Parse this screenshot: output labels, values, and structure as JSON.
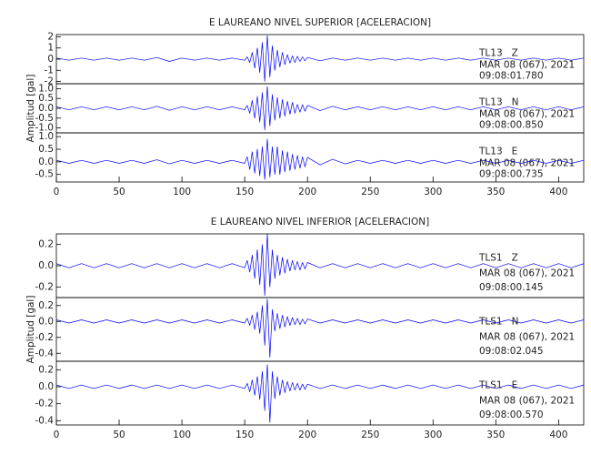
{
  "chart_data": [
    {
      "type": "line",
      "title": "E LAUREANO NIVEL SUPERIOR [ACELERACION]",
      "ylabel": "Amplitud [gal]",
      "color": "#0000ff",
      "xlim": [
        0,
        420
      ],
      "xticks": [
        0,
        50,
        100,
        150,
        200,
        250,
        300,
        350,
        400
      ],
      "x": [
        0,
        10,
        20,
        30,
        40,
        50,
        60,
        70,
        80,
        90,
        100,
        110,
        120,
        130,
        140,
        150,
        152,
        154,
        156,
        158,
        160,
        162,
        164,
        166,
        168,
        170,
        172,
        174,
        176,
        178,
        180,
        182,
        184,
        186,
        188,
        190,
        192,
        194,
        196,
        198,
        200,
        210,
        220,
        230,
        240,
        250,
        260,
        270,
        280,
        290,
        300,
        310,
        320,
        330,
        340,
        350,
        360,
        370,
        380,
        390,
        400,
        410,
        420
      ],
      "series": [
        {
          "station": "TL13   Z",
          "date": "MAR 08 (067), 2021",
          "time": "09:08:01.780",
          "ylim": [
            -2.2,
            2.2
          ],
          "yticks": [
            -2,
            -1,
            {
              "value": 0,
              "label": "0"
            },
            1,
            2
          ],
          "values": [
            0.1,
            -0.1,
            0.1,
            -0.1,
            0.1,
            -0.1,
            0.1,
            -0.1,
            0.15,
            -0.2,
            0.1,
            -0.1,
            0.1,
            -0.1,
            0.1,
            -0.1,
            0.2,
            -0.3,
            0.6,
            -0.8,
            1.0,
            -1.2,
            1.5,
            -2.0,
            2.1,
            -1.6,
            1.2,
            -1.0,
            0.8,
            -0.7,
            0.6,
            -0.5,
            0.4,
            -0.35,
            0.3,
            -0.3,
            0.25,
            -0.2,
            0.2,
            -0.15,
            0.15,
            -0.15,
            0.1,
            -0.1,
            0.1,
            -0.1,
            0.1,
            -0.1,
            0.1,
            -0.1,
            0.1,
            -0.1,
            0.1,
            -0.1,
            0.1,
            -0.1,
            0.1,
            -0.1,
            0.1,
            -0.1,
            0.1,
            -0.1,
            0.1
          ]
        },
        {
          "station": "TL13   N",
          "date": "MAR 08 (067), 2021",
          "time": "09:08:00.850",
          "ylim": [
            -1.25,
            1.25
          ],
          "yticks": [
            {
              "value": -1,
              "label": "-1.0"
            },
            -0.5,
            {
              "value": 0,
              "label": "0.0"
            },
            0.5,
            {
              "value": 1,
              "label": "1.0"
            }
          ],
          "values": [
            0.08,
            -0.08,
            0.08,
            -0.08,
            0.08,
            -0.08,
            0.08,
            -0.08,
            0.1,
            -0.1,
            0.08,
            -0.08,
            0.08,
            -0.08,
            0.08,
            -0.08,
            0.15,
            -0.25,
            0.4,
            -0.5,
            0.6,
            -0.7,
            0.8,
            -1.1,
            1.1,
            -0.9,
            0.7,
            -0.6,
            0.55,
            -0.5,
            0.45,
            -0.4,
            0.35,
            -0.3,
            0.3,
            -0.25,
            0.2,
            -0.2,
            0.18,
            -0.15,
            0.15,
            -0.12,
            0.1,
            -0.08,
            0.08,
            -0.08,
            0.08,
            -0.08,
            0.08,
            -0.08,
            0.08,
            -0.08,
            0.08,
            -0.08,
            0.08,
            -0.08,
            0.08,
            -0.08,
            0.08,
            -0.08,
            0.08,
            -0.08,
            0.08
          ]
        },
        {
          "station": "TL13   E",
          "date": "MAR 08 (067), 2021",
          "time": "09:08:00.735",
          "ylim": [
            -0.8,
            1.15
          ],
          "yticks": [
            -0.5,
            {
              "value": 0,
              "label": "0.0"
            },
            0.5,
            {
              "value": 1,
              "label": "1.0"
            }
          ],
          "values": [
            0.06,
            -0.06,
            0.06,
            -0.06,
            0.06,
            -0.06,
            0.06,
            -0.06,
            0.08,
            -0.08,
            0.06,
            -0.06,
            0.06,
            -0.06,
            0.06,
            -0.06,
            0.2,
            -0.3,
            0.4,
            -0.45,
            0.5,
            -0.55,
            0.6,
            -0.7,
            0.9,
            -0.6,
            0.6,
            -0.5,
            0.6,
            -0.5,
            0.45,
            -0.4,
            0.4,
            -0.35,
            0.3,
            -0.3,
            0.25,
            -0.25,
            0.2,
            -0.2,
            0.18,
            -0.12,
            0.1,
            -0.08,
            0.06,
            -0.06,
            0.06,
            -0.06,
            0.06,
            -0.06,
            0.06,
            -0.06,
            0.06,
            -0.06,
            0.06,
            -0.06,
            0.06,
            -0.06,
            0.06,
            -0.06,
            0.06,
            -0.06,
            0.06
          ]
        }
      ]
    },
    {
      "type": "line",
      "title": "E LAUREANO NIVEL INFERIOR [ACELERACION]",
      "ylabel": "Amplitud [gal]",
      "color": "#0000ff",
      "xlim": [
        0,
        420
      ],
      "xticks": [
        0,
        50,
        100,
        150,
        200,
        250,
        300,
        350,
        400
      ],
      "x": [
        0,
        10,
        20,
        30,
        40,
        50,
        60,
        70,
        80,
        90,
        100,
        110,
        120,
        130,
        140,
        150,
        152,
        154,
        156,
        158,
        160,
        162,
        164,
        166,
        168,
        170,
        172,
        174,
        176,
        178,
        180,
        182,
        184,
        186,
        188,
        190,
        192,
        194,
        196,
        198,
        200,
        210,
        220,
        230,
        240,
        250,
        260,
        270,
        280,
        290,
        300,
        310,
        320,
        330,
        340,
        350,
        360,
        370,
        380,
        390,
        400,
        410,
        420
      ],
      "series": [
        {
          "station": "TLS1   Z",
          "date": "MAR 08 (067), 2021",
          "time": "09:08:00.145",
          "ylim": [
            -0.3,
            0.3
          ],
          "yticks": [
            -0.2,
            {
              "value": 0,
              "label": "0.0"
            },
            0.2
          ],
          "values": [
            0.02,
            -0.02,
            0.02,
            -0.02,
            0.02,
            -0.02,
            0.02,
            -0.02,
            0.02,
            -0.02,
            0.02,
            -0.02,
            0.02,
            -0.02,
            0.02,
            -0.02,
            0.05,
            -0.06,
            0.1,
            -0.12,
            0.15,
            -0.18,
            0.2,
            -0.28,
            0.3,
            -0.2,
            0.15,
            -0.12,
            0.1,
            -0.09,
            0.08,
            -0.07,
            0.06,
            -0.05,
            0.05,
            -0.04,
            0.04,
            -0.04,
            0.03,
            -0.03,
            0.03,
            -0.02,
            0.02,
            -0.02,
            0.02,
            -0.02,
            0.02,
            -0.02,
            0.02,
            -0.02,
            0.02,
            -0.02,
            0.02,
            -0.02,
            0.02,
            -0.02,
            0.02,
            -0.02,
            0.02,
            -0.02,
            0.02,
            -0.02,
            0.02
          ]
        },
        {
          "station": "TLS1   N",
          "date": "MAR 08 (067), 2021",
          "time": "09:08:02.045",
          "ylim": [
            -0.5,
            0.3
          ],
          "yticks": [
            -0.4,
            -0.2,
            {
              "value": 0,
              "label": "0.0"
            },
            0.2
          ],
          "values": [
            0.02,
            -0.02,
            0.02,
            -0.02,
            0.02,
            -0.02,
            0.02,
            -0.02,
            0.02,
            -0.02,
            0.02,
            -0.02,
            0.02,
            -0.02,
            0.02,
            -0.02,
            0.04,
            -0.05,
            0.08,
            -0.1,
            0.12,
            -0.15,
            0.2,
            -0.3,
            0.28,
            -0.45,
            0.15,
            -0.12,
            0.1,
            -0.09,
            0.08,
            -0.07,
            0.06,
            -0.05,
            0.05,
            -0.04,
            0.04,
            -0.04,
            0.03,
            -0.03,
            0.03,
            -0.02,
            0.02,
            -0.02,
            0.02,
            -0.02,
            0.02,
            -0.02,
            0.02,
            -0.02,
            0.02,
            -0.02,
            0.02,
            -0.02,
            0.02,
            -0.02,
            0.02,
            -0.02,
            0.02,
            -0.02,
            0.02,
            -0.02,
            0.02
          ]
        },
        {
          "station": "TLS1   E",
          "date": "MAR 08 (067), 2021",
          "time": "09:08:00.570",
          "ylim": [
            -0.45,
            0.3
          ],
          "yticks": [
            -0.4,
            -0.2,
            {
              "value": 0,
              "label": "0.0"
            },
            0.2
          ],
          "values": [
            0.02,
            -0.02,
            0.02,
            -0.02,
            0.02,
            -0.02,
            0.02,
            -0.02,
            0.02,
            -0.02,
            0.02,
            -0.02,
            0.02,
            -0.02,
            0.02,
            -0.02,
            0.04,
            -0.06,
            0.08,
            -0.1,
            0.12,
            -0.15,
            0.18,
            -0.28,
            0.26,
            -0.42,
            0.18,
            -0.14,
            0.12,
            -0.1,
            0.08,
            -0.07,
            0.06,
            -0.05,
            0.05,
            -0.04,
            0.04,
            -0.04,
            0.03,
            -0.03,
            0.03,
            -0.02,
            0.02,
            -0.02,
            0.02,
            -0.02,
            0.02,
            -0.02,
            0.02,
            -0.02,
            0.02,
            -0.02,
            0.02,
            -0.02,
            0.02,
            -0.02,
            0.02,
            -0.02,
            0.02,
            -0.02,
            0.02,
            -0.02,
            0.02
          ]
        }
      ]
    }
  ]
}
